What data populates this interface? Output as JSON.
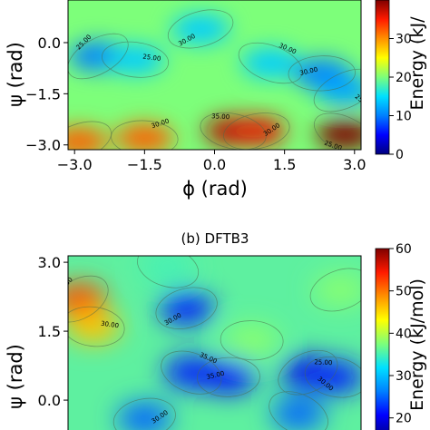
{
  "colors": {
    "colormap": [
      "#00007f",
      "#0000ff",
      "#0080ff",
      "#00e0ff",
      "#7dff7a",
      "#ffff00",
      "#ff9000",
      "#ff1a00",
      "#7f0000"
    ]
  },
  "chart_data": [
    {
      "type": "heatmap",
      "panel_title": "",
      "xlabel": "ϕ (rad)",
      "ylabel": "ψ (rad)",
      "xlim": [
        -3.14,
        3.14
      ],
      "ylim": [
        -3.14,
        3.14
      ],
      "x_ticks": [
        "−3.0",
        "−1.5",
        "0.0",
        "1.5",
        "3.0"
      ],
      "y_ticks": [
        "−3.0",
        "−1.5",
        "0.0"
      ],
      "y_tick_values": [
        -3.0,
        -1.5,
        0.0
      ],
      "x_tick_values": [
        -3.0,
        -1.5,
        0.0,
        1.5,
        3.0
      ],
      "colorbar_label": "Energy (kJ/",
      "colorbar_ticks": [
        "0",
        "10",
        "20",
        "30"
      ],
      "colorbar_tick_values": [
        0,
        10,
        20,
        30
      ],
      "color_range": [
        0,
        40
      ],
      "contour_labels": [
        "25.00",
        "25.00",
        "30.00",
        "30.00",
        "30.00",
        "25.00",
        "35.00",
        "30.00",
        "25.00",
        "30.00"
      ],
      "regions": [
        {
          "phi": -2.5,
          "psi": -0.4,
          "energy": 10
        },
        {
          "phi": -1.7,
          "psi": -0.5,
          "energy": 14
        },
        {
          "phi": -0.3,
          "psi": 0.4,
          "energy": 14
        },
        {
          "phi": 1.2,
          "psi": -0.6,
          "energy": 14
        },
        {
          "phi": 2.3,
          "psi": -0.9,
          "energy": 10
        },
        {
          "phi": 2.8,
          "psi": -1.4,
          "energy": 12
        },
        {
          "phi": 0.4,
          "psi": -2.6,
          "energy": 38
        },
        {
          "phi": 0.9,
          "psi": -2.6,
          "energy": 36
        },
        {
          "phi": 2.8,
          "psi": -2.7,
          "energy": 40
        },
        {
          "phi": -1.5,
          "psi": -2.8,
          "energy": 32
        },
        {
          "phi": -2.9,
          "psi": -2.9,
          "energy": 32
        }
      ]
    },
    {
      "type": "heatmap",
      "panel_title": "(b) DFTB3",
      "xlabel": "",
      "ylabel": "ψ (rad)",
      "xlim": [
        -3.14,
        3.14
      ],
      "ylim": [
        -3.14,
        3.14
      ],
      "x_ticks": [],
      "y_ticks": [
        "3.0",
        "1.5",
        "0.0"
      ],
      "y_tick_values": [
        3.0,
        1.5,
        0.0
      ],
      "colorbar_label": "Energy (kJ/mol)",
      "colorbar_ticks": [
        "20",
        "30",
        "40",
        "50",
        "60"
      ],
      "colorbar_tick_values": [
        20,
        30,
        40,
        50,
        60
      ],
      "color_range": [
        15,
        60
      ],
      "contour_labels": [
        "25.00",
        "30.00",
        "30.00",
        "35.00",
        "35.00",
        "30.00",
        "25.00",
        "30.00"
      ],
      "regions": [
        {
          "phi": -2.9,
          "psi": 2.2,
          "energy": 52
        },
        {
          "phi": -2.6,
          "psi": 1.6,
          "energy": 46
        },
        {
          "phi": -0.6,
          "psi": 2.0,
          "energy": 22
        },
        {
          "phi": -0.5,
          "psi": 0.6,
          "energy": 22
        },
        {
          "phi": 0.3,
          "psi": 0.5,
          "energy": 21
        },
        {
          "phi": 2.0,
          "psi": 0.6,
          "energy": 20
        },
        {
          "phi": 2.6,
          "psi": 0.5,
          "energy": 22
        },
        {
          "phi": -1.5,
          "psi": -0.4,
          "energy": 25
        },
        {
          "phi": 1.8,
          "psi": -0.3,
          "energy": 25
        },
        {
          "phi": 0.8,
          "psi": 1.3,
          "energy": 38
        },
        {
          "phi": 2.7,
          "psi": 2.4,
          "energy": 38
        },
        {
          "phi": -1.0,
          "psi": 2.9,
          "energy": 35
        }
      ]
    }
  ]
}
